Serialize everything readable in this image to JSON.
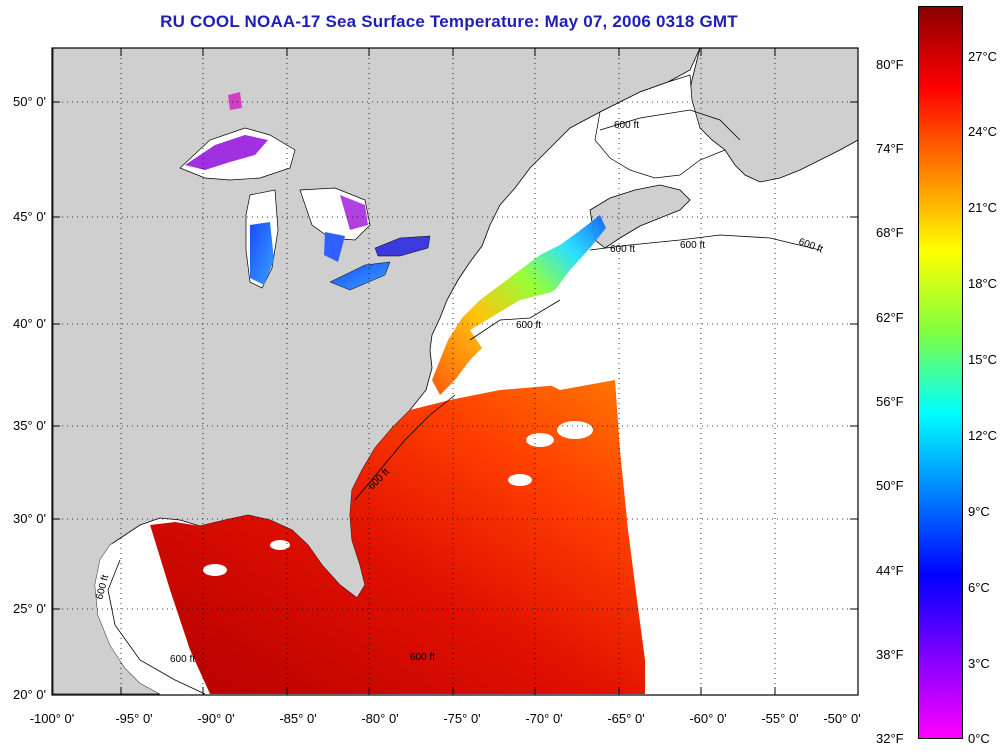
{
  "title": "RU COOL  NOAA-17  Sea Surface Temperature:  May 07, 2006 0318 GMT",
  "map": {
    "lon_ticks": [
      "-100° 0'",
      "-95° 0'",
      "-90° 0'",
      "-85° 0'",
      "-80° 0'",
      "-75° 0'",
      "-70° 0'",
      "-65° 0'",
      "-60° 0'",
      "-55° 0'",
      "-50° 0'"
    ],
    "lat_ticks": [
      "50° 0'",
      "45° 0'",
      "40° 0'",
      "35° 0'",
      "30° 0'",
      "25° 0'",
      "20° 0'"
    ],
    "contour_label": "600 ft",
    "colors": {
      "land": "#cfcfcf",
      "clouds_or_nodata": "#ffffff"
    }
  },
  "colorbar": {
    "fahrenheit": [
      "80°F",
      "74°F",
      "68°F",
      "62°F",
      "56°F",
      "50°F",
      "44°F",
      "38°F",
      "32°F"
    ],
    "celsius": [
      "27°C",
      "24°C",
      "21°C",
      "18°C",
      "15°C",
      "12°C",
      "9°C",
      "6°C",
      "3°C",
      "0°C"
    ],
    "gradient": [
      "#8b0000",
      "#ff0000",
      "#ff8000",
      "#ffff00",
      "#80ff40",
      "#00ffff",
      "#0080ff",
      "#0000ff",
      "#8000ff",
      "#ff00ff"
    ]
  }
}
